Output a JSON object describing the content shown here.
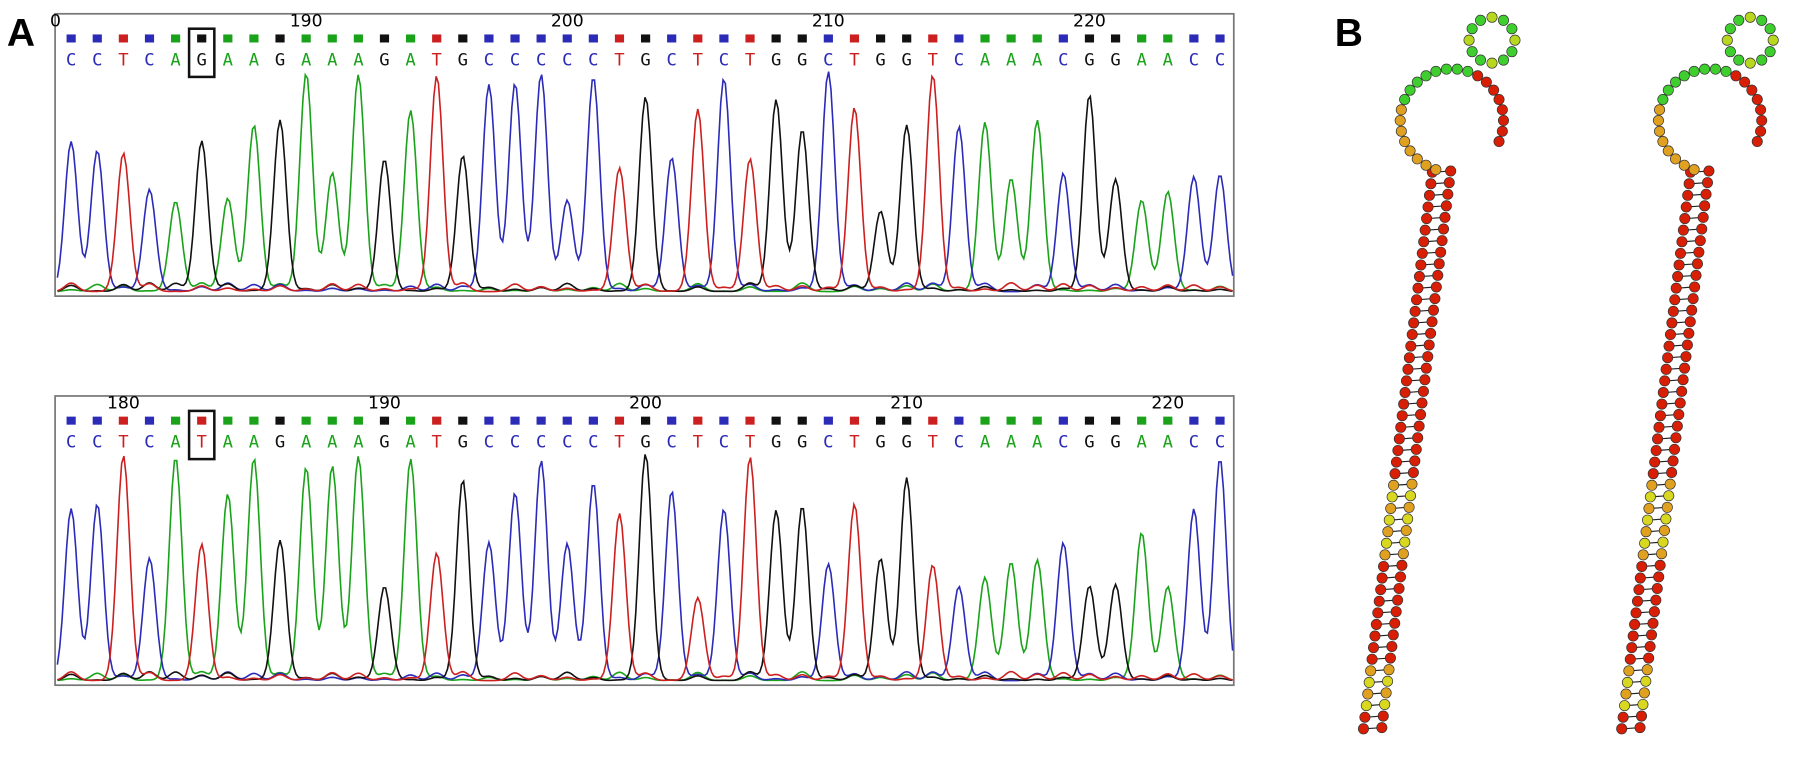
{
  "panels": [
    {
      "label": "A",
      "chromatograms": [
        {
          "ticks": [
            "0",
            "190",
            "200",
            "210",
            "220"
          ],
          "bases": [
            "C",
            "C",
            "T",
            "C",
            "A",
            "G",
            "A",
            "A",
            "G",
            "A",
            "A",
            "A",
            "G",
            "A",
            "T",
            "G",
            "C",
            "C",
            "C",
            "C",
            "C",
            "T",
            "G",
            "C",
            "T",
            "C",
            "T",
            "G",
            "G",
            "C",
            "T",
            "G",
            "G",
            "T",
            "C",
            "A",
            "A",
            "A",
            "C",
            "G",
            "G",
            "A",
            "A",
            "C",
            "C"
          ]
        },
        {
          "ticks": [
            "180",
            "190",
            "200",
            "210",
            "220"
          ],
          "bases": [
            "C",
            "C",
            "T",
            "C",
            "A",
            "T",
            "A",
            "A",
            "G",
            "A",
            "A",
            "A",
            "G",
            "A",
            "T",
            "G",
            "C",
            "C",
            "C",
            "C",
            "C",
            "T",
            "G",
            "C",
            "T",
            "C",
            "T",
            "G",
            "G",
            "C",
            "T",
            "G",
            "G",
            "T",
            "C",
            "A",
            "A",
            "A",
            "C",
            "G",
            "G",
            "A",
            "A",
            "C",
            "C"
          ]
        }
      ]
    },
    {
      "label": "B"
    }
  ]
}
